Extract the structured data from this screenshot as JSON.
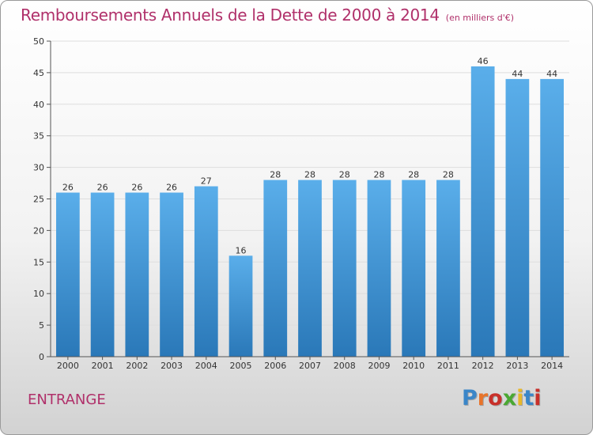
{
  "title": "Remboursements Annuels de la Dette de 2000 à 2014",
  "subtitle": "(en milliers d'€)",
  "commune": "ENTRANGE",
  "brand": "Proxiti",
  "brand_colors": [
    "#3a86c8",
    "#e8742a",
    "#c8302a",
    "#4aa832",
    "#e8b82a",
    "#3a86c8",
    "#c8302a"
  ],
  "chart_data": {
    "type": "bar",
    "title": "Remboursements Annuels de la Dette de 2000 à 2014",
    "subtitle": "(en milliers d'€)",
    "xlabel": "",
    "ylabel": "",
    "categories": [
      "2000",
      "2001",
      "2002",
      "2003",
      "2004",
      "2005",
      "2006",
      "2007",
      "2008",
      "2009",
      "2010",
      "2011",
      "2012",
      "2013",
      "2014"
    ],
    "values": [
      26,
      26,
      26,
      26,
      27,
      16,
      28,
      28,
      28,
      28,
      28,
      28,
      46,
      44,
      44
    ],
    "ylim": [
      0,
      50
    ],
    "yticks": [
      0,
      5,
      10,
      15,
      20,
      25,
      30,
      35,
      40,
      45,
      50
    ],
    "grid": true,
    "legend": "none",
    "bar_color_top": "#5aaeea",
    "bar_color_bottom": "#2a78b8"
  }
}
